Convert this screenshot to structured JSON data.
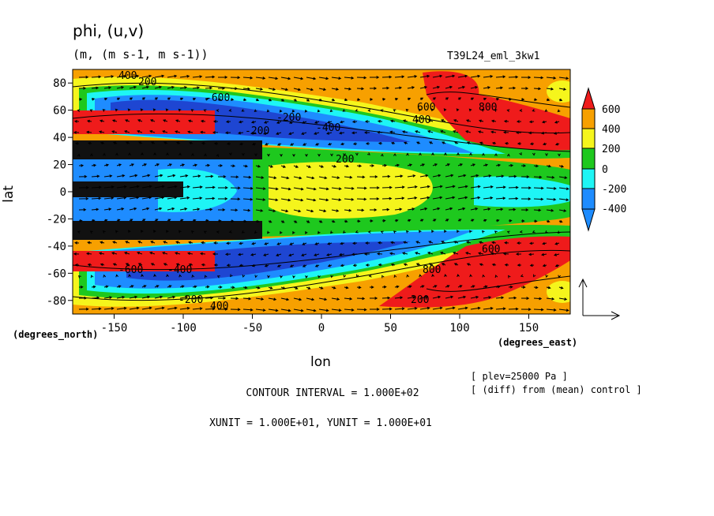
{
  "chart_data": {
    "type": "heatmap",
    "title": "phi, (u,v)",
    "subtitle": "(m, (m s-1, m s-1))",
    "experiment": "T39L24_eml_3kw1",
    "xlabel": "lon",
    "ylabel": "lat",
    "x_units": "(degrees_east)",
    "y_units": "(degrees_north)",
    "xlim": [
      -180,
      180
    ],
    "ylim": [
      -90,
      90
    ],
    "xticks": [
      -150,
      -100,
      -50,
      0,
      50,
      100,
      150
    ],
    "yticks": [
      -80,
      -60,
      -40,
      -20,
      0,
      20,
      40,
      60,
      80
    ],
    "colorbar": {
      "levels": [
        -400,
        -200,
        0,
        200,
        400,
        600
      ],
      "labels": [
        "600",
        "400",
        "200",
        "0",
        "-200",
        "-400"
      ],
      "colors": [
        "#ef1b1b",
        "#f7a000",
        "#f5f51c",
        "#1ec81e",
        "#1ef5f5",
        "#1e8cff",
        "#1e46d2"
      ]
    },
    "contour_labels": [
      "400",
      "200",
      "-600",
      "-200",
      "-400",
      "200",
      "600",
      "800",
      "400",
      "-200",
      "-600",
      "-400",
      "-200",
      "600",
      "800",
      "200",
      "400"
    ],
    "notes": {
      "plev": "[ plev=25000 Pa ]",
      "diff": "[ (diff) from (mean) control ]",
      "contour_interval": "CONTOUR INTERVAL = 1.000E+02",
      "units": "XUNIT = 1.000E+01, YUNIT = 1.000E+01"
    }
  }
}
